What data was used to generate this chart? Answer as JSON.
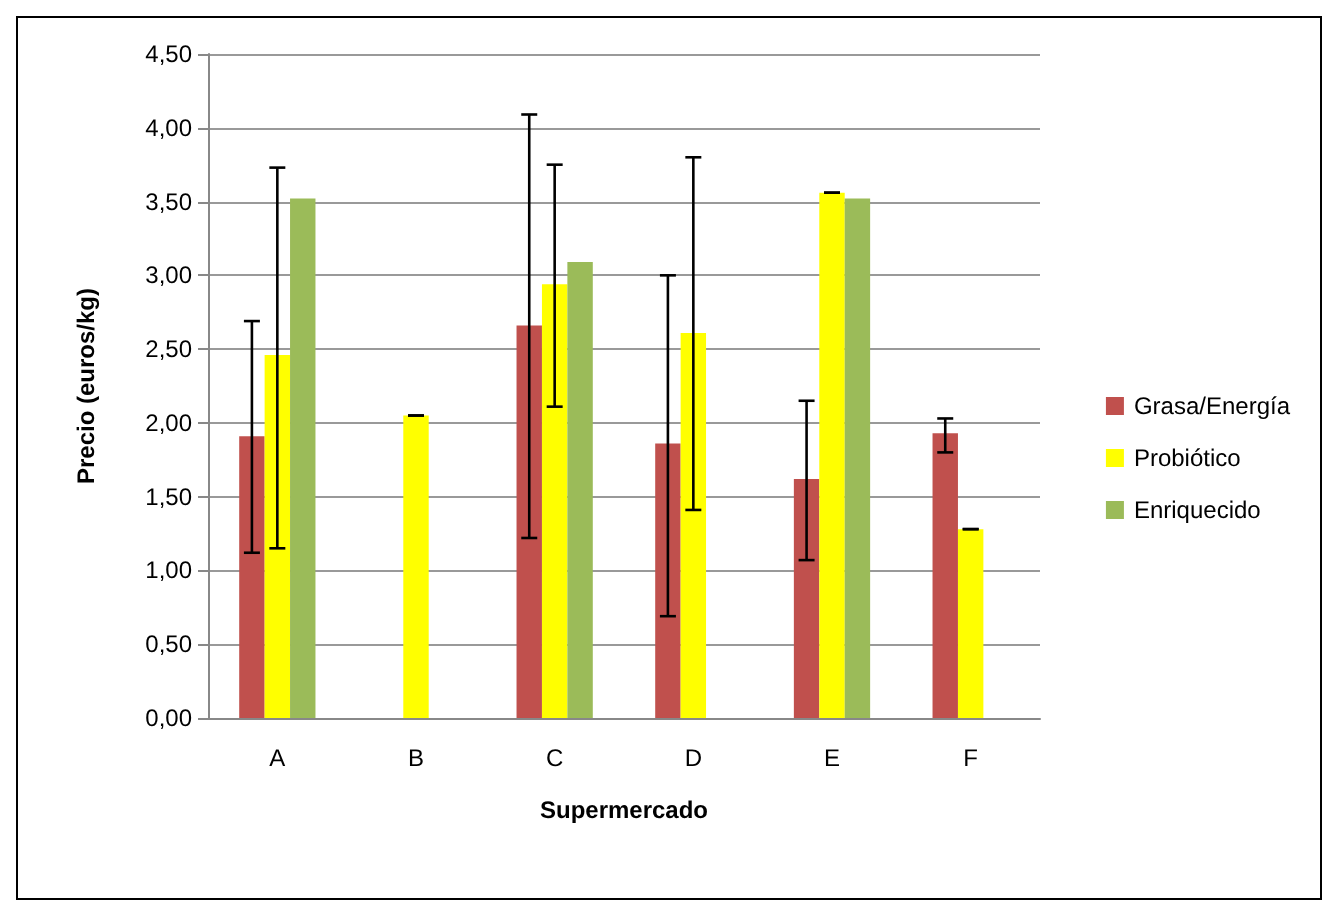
{
  "chart_data": {
    "type": "bar",
    "xlabel": "Supermercado",
    "ylabel": "Precio (euros/kg)",
    "categories": [
      "A",
      "B",
      "C",
      "D",
      "E",
      "F"
    ],
    "series": [
      {
        "name": "Grasa/Energía",
        "color": "#c0504d",
        "values": [
          1.91,
          null,
          2.66,
          1.86,
          1.62,
          1.93
        ],
        "errors": [
          [
            1.12,
            2.69
          ],
          null,
          [
            1.22,
            4.09
          ],
          [
            0.69,
            3.0
          ],
          [
            1.07,
            2.15
          ],
          [
            1.8,
            2.03
          ]
        ]
      },
      {
        "name": "Probiótico",
        "color": "#ffff00",
        "values": [
          2.46,
          2.05,
          2.94,
          2.61,
          3.56,
          1.28
        ],
        "errors": [
          [
            1.15,
            3.73
          ],
          0,
          [
            2.11,
            3.75
          ],
          [
            1.41,
            3.8
          ],
          0,
          0
        ]
      },
      {
        "name": "Enriquecido",
        "color": "#9bbb59",
        "values": [
          3.52,
          null,
          3.09,
          null,
          3.52,
          null
        ]
      }
    ],
    "ylim": [
      0,
      4.5
    ],
    "yticks": [
      {
        "value": 0,
        "label": "0,00"
      },
      {
        "value": 0.5,
        "label": "0,50"
      },
      {
        "value": 1,
        "label": "1,00"
      },
      {
        "value": 1.5,
        "label": "1,50"
      },
      {
        "value": 2,
        "label": "2,00"
      },
      {
        "value": 2.5,
        "label": "2,50"
      },
      {
        "value": 3,
        "label": "3,00"
      },
      {
        "value": 3.5,
        "label": "3,50"
      },
      {
        "value": 4,
        "label": "4,00"
      },
      {
        "value": 4.5,
        "label": "4,50"
      }
    ],
    "grid": "y",
    "legend": "right"
  }
}
